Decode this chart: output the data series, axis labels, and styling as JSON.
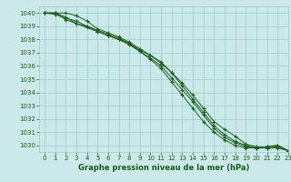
{
  "title": "Graphe pression niveau de la mer (hPa)",
  "background_color": "#cce9e9",
  "grid_color": "#99cccc",
  "line_color": "#1a5c1a",
  "xlim": [
    -0.5,
    23
  ],
  "ylim": [
    1029.5,
    1040.5
  ],
  "yticks": [
    1030,
    1031,
    1032,
    1033,
    1034,
    1035,
    1036,
    1037,
    1038,
    1039,
    1040
  ],
  "xticks": [
    0,
    1,
    2,
    3,
    4,
    5,
    6,
    7,
    8,
    9,
    10,
    11,
    12,
    13,
    14,
    15,
    16,
    17,
    18,
    19,
    20,
    21,
    22,
    23
  ],
  "series": [
    [
      1040.0,
      1040.0,
      1039.7,
      1039.2,
      1038.9,
      1038.6,
      1038.3,
      1038.0,
      1037.7,
      1037.2,
      1036.8,
      1036.2,
      1035.5,
      1034.7,
      1033.8,
      1032.8,
      1031.8,
      1031.2,
      1030.7,
      1030.1,
      1029.9,
      1029.8,
      1029.8,
      1029.6
    ],
    [
      1040.0,
      1040.0,
      1040.0,
      1039.8,
      1039.4,
      1038.8,
      1038.5,
      1038.2,
      1037.8,
      1037.3,
      1036.8,
      1036.3,
      1035.5,
      1034.5,
      1033.5,
      1032.5,
      1031.5,
      1030.8,
      1030.3,
      1030.0,
      1029.8,
      1029.9,
      1030.0,
      1029.6
    ],
    [
      1040.0,
      1040.0,
      1039.5,
      1039.2,
      1039.0,
      1038.7,
      1038.4,
      1038.1,
      1037.7,
      1037.1,
      1036.5,
      1035.8,
      1034.8,
      1033.8,
      1032.8,
      1031.8,
      1031.0,
      1030.4,
      1030.0,
      1029.8,
      1029.8,
      1029.8,
      1029.9,
      1029.6
    ],
    [
      1040.0,
      1039.9,
      1039.6,
      1039.4,
      1039.0,
      1038.6,
      1038.3,
      1038.0,
      1037.6,
      1037.1,
      1036.6,
      1036.0,
      1035.1,
      1034.2,
      1033.3,
      1032.3,
      1031.3,
      1030.6,
      1030.2,
      1029.9,
      1029.8,
      1029.9,
      1030.0,
      1029.6
    ]
  ],
  "ylabel_left_pad": 35,
  "tick_fontsize": 5,
  "xlabel_fontsize": 6,
  "linewidth": 0.7,
  "markersize": 2.5
}
